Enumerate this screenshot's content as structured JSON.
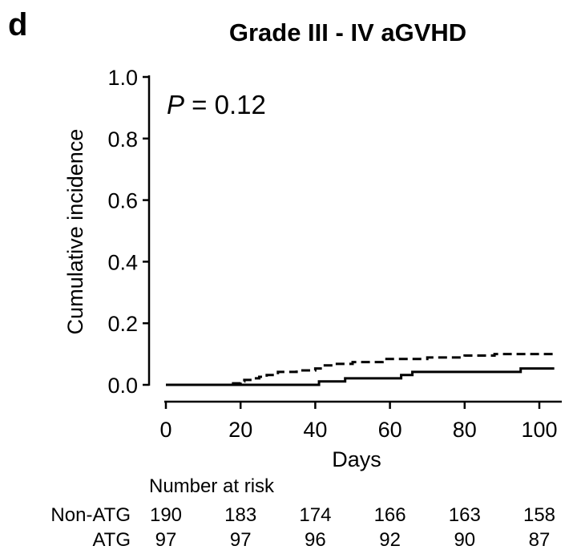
{
  "panel_letter": "d",
  "chart_data": {
    "type": "line",
    "title": "Grade III - IV aGVHD",
    "xlabel": "Days",
    "ylabel": "Cumulative incidence",
    "xlim": [
      0,
      104
    ],
    "ylim": [
      0,
      1.0
    ],
    "xticks": [
      0,
      20,
      40,
      60,
      80,
      100
    ],
    "yticks": [
      0.0,
      0.2,
      0.4,
      0.6,
      0.8,
      1.0
    ],
    "ytick_labels": [
      "0.0",
      "0.2",
      "0.4",
      "0.6",
      "0.8",
      "1.0"
    ],
    "grid": false,
    "annotation": {
      "italic": "P",
      "text": " = 0.12"
    },
    "series": [
      {
        "style": "solid",
        "x": [
          0,
          41,
          41,
          48,
          48,
          63,
          63,
          66,
          66,
          95,
          95,
          104
        ],
        "y": [
          0,
          0,
          0.011,
          0.011,
          0.021,
          0.021,
          0.032,
          0.032,
          0.042,
          0.042,
          0.053,
          0.053
        ]
      },
      {
        "style": "dashed",
        "x": [
          0,
          14,
          18,
          20,
          21,
          23,
          25,
          27,
          30,
          35,
          40,
          42,
          45,
          50,
          58,
          70,
          80,
          88,
          95,
          104
        ],
        "y": [
          0,
          0,
          0.005,
          0.011,
          0.016,
          0.021,
          0.026,
          0.032,
          0.042,
          0.047,
          0.053,
          0.063,
          0.068,
          0.074,
          0.084,
          0.089,
          0.095,
          0.1,
          0.1,
          0.1
        ]
      }
    ],
    "risk_table": {
      "header": "Number at risk",
      "rows": [
        {
          "label": "Non-ATG",
          "values": [
            190,
            183,
            174,
            166,
            163,
            158
          ]
        },
        {
          "label": "ATG",
          "values": [
            97,
            97,
            96,
            92,
            90,
            87
          ]
        }
      ]
    }
  }
}
